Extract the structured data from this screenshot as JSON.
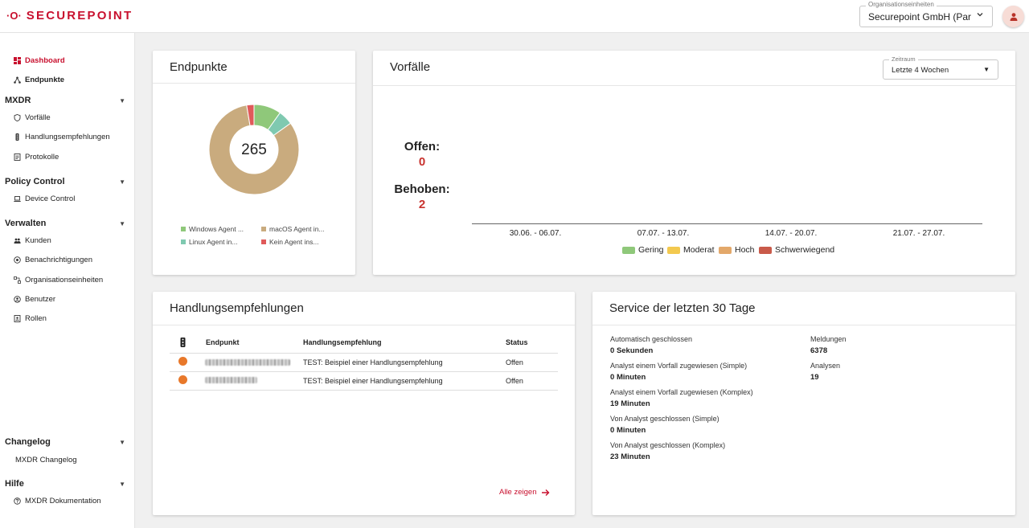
{
  "header": {
    "org_label": "Organisationseinheiten",
    "org_value": "Securepoint GmbH (Partner)"
  },
  "brand": {
    "mark": "·O·",
    "name": "SECUREPOINT",
    "accent": "#c8102e"
  },
  "sidebar": {
    "top_items": [
      {
        "label": "Dashboard",
        "icon": "grid-icon",
        "active": true
      },
      {
        "label": "Endpunkte",
        "icon": "nodes-icon"
      }
    ],
    "sections": [
      {
        "title": "MXDR",
        "items": [
          {
            "label": "Vorfälle",
            "icon": "shield-icon"
          },
          {
            "label": "Handlungsempfehlungen",
            "icon": "traffic-light-icon"
          },
          {
            "label": "Protokolle",
            "icon": "document-icon"
          }
        ]
      },
      {
        "title": "Policy Control",
        "items": [
          {
            "label": "Device Control",
            "icon": "laptop-icon"
          }
        ]
      },
      {
        "title": "Verwalten",
        "items": [
          {
            "label": "Kunden",
            "icon": "people-icon"
          },
          {
            "label": "Benachrichtigungen",
            "icon": "bell-icon"
          },
          {
            "label": "Organisationseinheiten",
            "icon": "org-icon"
          },
          {
            "label": "Benutzer",
            "icon": "user-icon"
          },
          {
            "label": "Rollen",
            "icon": "id-badge-icon"
          }
        ]
      },
      {
        "title": "Changelog",
        "items": [
          {
            "label": "MXDR Changelog",
            "icon": ""
          }
        ]
      },
      {
        "title": "Hilfe",
        "items": [
          {
            "label": "MXDR Dokumentation",
            "icon": "help-icon"
          }
        ]
      }
    ]
  },
  "endpunkte": {
    "title": "Endpunkte",
    "total": "265",
    "legend": [
      {
        "label": "Windows Agent ...",
        "color": "#8fc87a"
      },
      {
        "label": "macOS Agent in...",
        "color": "#c9ab7e"
      },
      {
        "label": "Linux Agent in...",
        "color": "#7fc9b0"
      },
      {
        "label": "Kein Agent ins...",
        "color": "#e05a5a"
      }
    ],
    "chart_data": {
      "type": "pie",
      "values": [
        26,
        14,
        218,
        7
      ],
      "labels": [
        "Windows Agent ...",
        "Linux Agent in...",
        "macOS Agent in...",
        "Kein Agent ins..."
      ],
      "colors": [
        "#8fc87a",
        "#7fc9b0",
        "#c9ab7e",
        "#e05a5a"
      ]
    }
  },
  "vorfaelle": {
    "title": "Vorfälle",
    "zeitraum_label": "Zeitraum",
    "zeitraum_value": "Letzte 4 Wochen",
    "offen_label": "Offen:",
    "offen_value": "0",
    "behoben_label": "Behoben:",
    "behoben_value": "2",
    "weeks": [
      "30.06. - 06.07.",
      "07.07. - 13.07.",
      "14.07. - 20.07.",
      "21.07. - 27.07."
    ],
    "severity_legend": [
      {
        "label": "Gering",
        "color": "#8fc87a"
      },
      {
        "label": "Moderat",
        "color": "#f3c94f"
      },
      {
        "label": "Hoch",
        "color": "#e3a86a"
      },
      {
        "label": "Schwerwiegend",
        "color": "#c95a4a"
      }
    ]
  },
  "handlungsempfehlungen": {
    "title": "Handlungsempfehlungen",
    "columns": [
      "Endpunkt",
      "Handlungsempfehlung",
      "Status"
    ],
    "rows": [
      {
        "empfehlung": "TEST: Beispiel einer Handlungsempfehlung",
        "status": "Offen"
      },
      {
        "empfehlung": "TEST: Beispiel einer Handlungsempfehlung",
        "status": "Offen"
      }
    ],
    "alle_zeigen": "Alle zeigen"
  },
  "service": {
    "title": "Service der letzten 30 Tage",
    "left": [
      {
        "label": "Automatisch geschlossen",
        "value": "0",
        "unit": "Sekunden"
      },
      {
        "label": "Analyst einem Vorfall zugewiesen (Simple)",
        "value": "0",
        "unit": "Minuten"
      },
      {
        "label": "Analyst einem Vorfall zugewiesen (Komplex)",
        "value": "19",
        "unit": "Minuten"
      },
      {
        "label": "Von Analyst geschlossen (Simple)",
        "value": "0",
        "unit": "Minuten"
      },
      {
        "label": "Von Analyst geschlossen (Komplex)",
        "value": "23",
        "unit": "Minuten"
      }
    ],
    "right": [
      {
        "label": "Meldungen",
        "value": "6378"
      },
      {
        "label": "Analysen",
        "value": "19"
      }
    ]
  }
}
